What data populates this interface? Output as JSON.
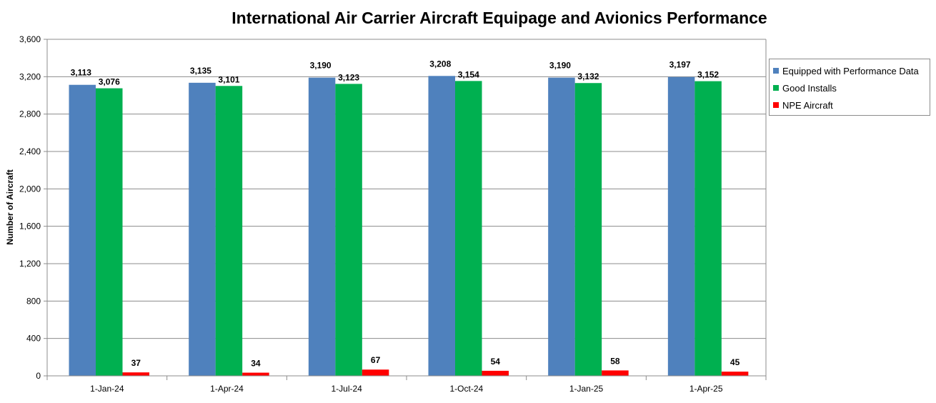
{
  "chart_data": {
    "type": "bar",
    "title": "International Air Carrier Aircraft Equipage and Avionics Performance",
    "xlabel": "",
    "ylabel": "Number of Aircraft",
    "ylim": [
      0,
      3600
    ],
    "yticks": [
      0,
      400,
      800,
      1200,
      1600,
      2000,
      2400,
      2800,
      3200,
      3600
    ],
    "ytick_labels": [
      "0",
      "400",
      "800",
      "1,200",
      "1,600",
      "2,000",
      "2,400",
      "2,800",
      "3,200",
      "3,600"
    ],
    "categories": [
      "1-Jan-24",
      "1-Apr-24",
      "1-Jul-24",
      "1-Oct-24",
      "1-Jan-25",
      "1-Apr-25"
    ],
    "series": [
      {
        "name": "Equipped with Performance Data",
        "color": "#4f81bd",
        "values": [
          3113,
          3135,
          3190,
          3208,
          3190,
          3197
        ],
        "labels": [
          "3,113",
          "3,135",
          "3,190",
          "3,208",
          "3,190",
          "3,197"
        ]
      },
      {
        "name": "Good Installs",
        "color": "#00b050",
        "values": [
          3076,
          3101,
          3123,
          3154,
          3132,
          3152
        ],
        "labels": [
          "3,076",
          "3,101",
          "3,123",
          "3,154",
          "3,132",
          "3,152"
        ]
      },
      {
        "name": "NPE Aircraft",
        "color": "#ff0000",
        "values": [
          37,
          34,
          67,
          54,
          58,
          45
        ],
        "labels": [
          "37",
          "34",
          "67",
          "54",
          "58",
          "45"
        ]
      }
    ],
    "grid": true,
    "legend_position": "top-right"
  }
}
